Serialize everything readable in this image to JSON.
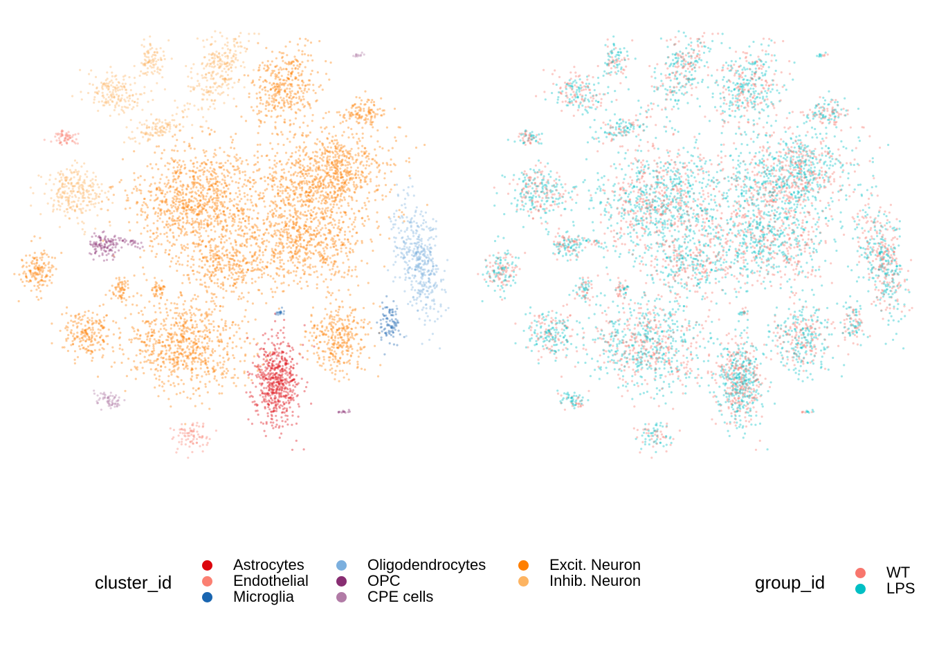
{
  "chart_data": [
    {
      "type": "scatter",
      "title": "",
      "xlabel": "",
      "ylabel": "",
      "grid": false,
      "axes_visible": false,
      "color_by": "cluster_id",
      "legend": {
        "title": "cluster_id",
        "placement": "bottom",
        "entries": [
          {
            "name": "Astrocytes",
            "color": "#DC050C"
          },
          {
            "name": "Endothelial",
            "color": "#FB8072"
          },
          {
            "name": "Microglia",
            "color": "#1965B0"
          },
          {
            "name": "Oligodendrocytes",
            "color": "#7BAFDE"
          },
          {
            "name": "OPC",
            "color": "#882E72"
          },
          {
            "name": "CPE cells",
            "color": "#B17BA6"
          },
          {
            "name": "Excit. Neuron",
            "color": "#FF7F00"
          },
          {
            "name": "Inhib. Neuron",
            "color": "#FDB462"
          }
        ]
      }
    },
    {
      "type": "scatter",
      "title": "",
      "xlabel": "",
      "ylabel": "",
      "grid": false,
      "axes_visible": false,
      "color_by": "group_id",
      "legend": {
        "title": "group_id",
        "placement": "bottom-right",
        "entries": [
          {
            "name": "WT",
            "color": "#F8766D"
          },
          {
            "name": "LPS",
            "color": "#00BFC4"
          }
        ]
      }
    }
  ]
}
